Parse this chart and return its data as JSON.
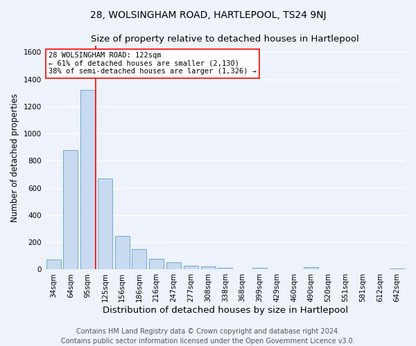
{
  "title": "28, WOLSINGHAM ROAD, HARTLEPOOL, TS24 9NJ",
  "subtitle": "Size of property relative to detached houses in Hartlepool",
  "xlabel": "Distribution of detached houses by size in Hartlepool",
  "ylabel": "Number of detached properties",
  "footer_line1": "Contains HM Land Registry data © Crown copyright and database right 2024.",
  "footer_line2": "Contains public sector information licensed under the Open Government Licence v3.0.",
  "bar_labels": [
    "34sqm",
    "64sqm",
    "95sqm",
    "125sqm",
    "156sqm",
    "186sqm",
    "216sqm",
    "247sqm",
    "277sqm",
    "308sqm",
    "338sqm",
    "368sqm",
    "399sqm",
    "429sqm",
    "460sqm",
    "490sqm",
    "520sqm",
    "551sqm",
    "581sqm",
    "612sqm",
    "642sqm"
  ],
  "bar_values": [
    75,
    880,
    1320,
    670,
    245,
    148,
    80,
    55,
    30,
    25,
    13,
    4,
    12,
    0,
    0,
    20,
    0,
    0,
    0,
    0,
    5
  ],
  "bar_color": "#c8daf0",
  "bar_edge_color": "#6aaad4",
  "property_line_color": "red",
  "annotation_text": "28 WOLSINGHAM ROAD: 122sqm\n← 61% of detached houses are smaller (2,130)\n38% of semi-detached houses are larger (1,326) →",
  "annotation_box_color": "white",
  "annotation_box_edge_color": "red",
  "ylim": [
    0,
    1650
  ],
  "yticks": [
    0,
    200,
    400,
    600,
    800,
    1000,
    1200,
    1400,
    1600
  ],
  "background_color": "#eef2fa",
  "grid_color": "white",
  "title_fontsize": 10,
  "subtitle_fontsize": 9.5,
  "xlabel_fontsize": 9.5,
  "ylabel_fontsize": 8.5,
  "tick_fontsize": 7.5,
  "annotation_fontsize": 7.5,
  "footer_fontsize": 7
}
